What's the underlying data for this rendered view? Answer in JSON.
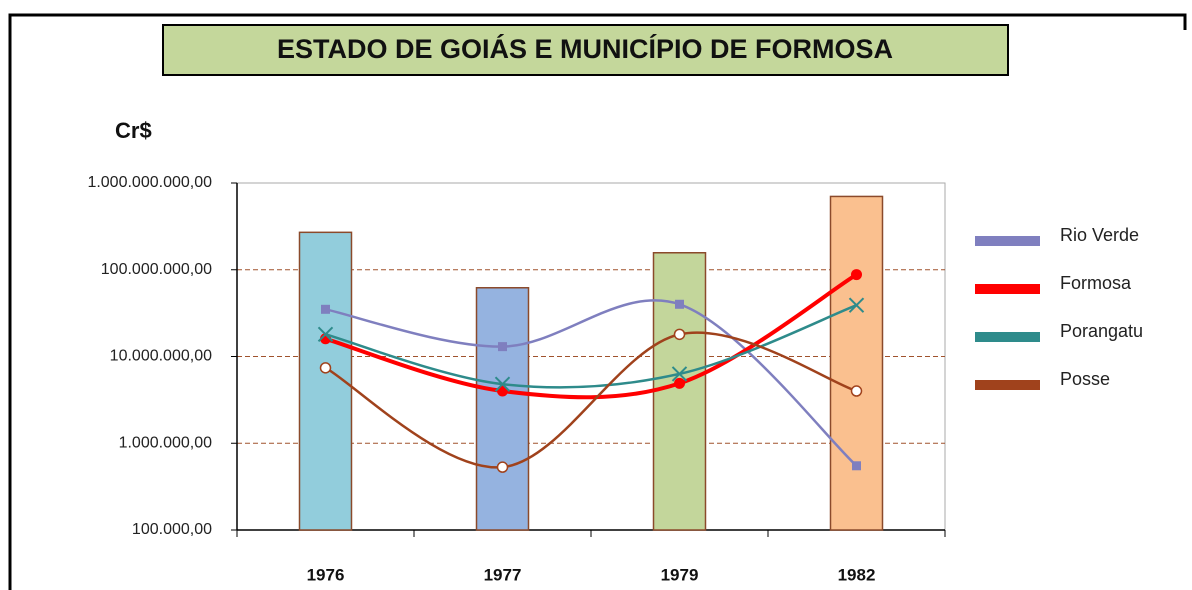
{
  "chart_data": {
    "type": "line",
    "title": "ESTADO DE GOIÁS E MUNICÍPIO DE FORMOSA",
    "ylabel": "Cr$",
    "log_scale": true,
    "grid": true,
    "legend": "right",
    "categories": [
      "1976",
      "1977",
      "1979",
      "1982"
    ],
    "bars": {
      "values": [
        270000000,
        62000000,
        157000000,
        700000000
      ],
      "colors": [
        "#92cddc",
        "#95b3e0",
        "#c3d69b",
        "#fac08f"
      ],
      "edge": "#8b4a2b"
    },
    "series": [
      {
        "name": "Rio Verde",
        "color": "#7f7fbf",
        "marker": "square",
        "values": [
          35000000,
          13000000,
          40000000,
          550000
        ]
      },
      {
        "name": "Formosa",
        "color": "#ff0000",
        "marker": "dot",
        "values": [
          16000000,
          4000000,
          4900000,
          88000000
        ]
      },
      {
        "name": "Porangatu",
        "color": "#2e8b8b",
        "marker": "x",
        "values": [
          18000000,
          4800000,
          6300000,
          39000000
        ]
      },
      {
        "name": "Posse",
        "color": "#a0421c",
        "marker": "circle",
        "values": [
          7400000,
          530000,
          18000000,
          4000000
        ]
      }
    ],
    "ylim": [
      100000,
      1000000000
    ],
    "yticks": [
      {
        "value": 100000,
        "label": "100.000,00"
      },
      {
        "value": 1000000,
        "label": "1.000.000,00"
      },
      {
        "value": 10000000,
        "label": "10.000.000,00"
      },
      {
        "value": 100000000,
        "label": "100.000.000,00"
      },
      {
        "value": 1000000000,
        "label": "1.000.000.000,00"
      }
    ]
  }
}
